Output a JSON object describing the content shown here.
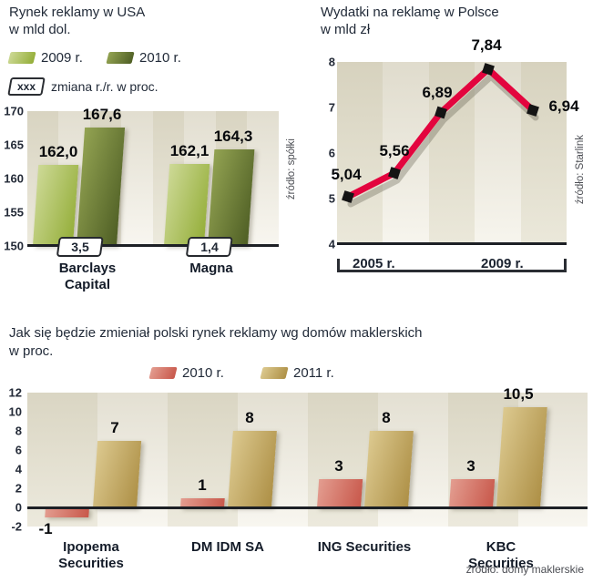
{
  "chart_data": [
    {
      "id": "usa-ad-market",
      "type": "bar",
      "title": "Rynek reklamy w USA",
      "subtitle": "w mld dol.",
      "note_tag": "xxx",
      "note_text": "zmiana r./r. w proc.",
      "source": "źródło: spółki",
      "categories": [
        "Barclays\nCapital",
        "Magna"
      ],
      "series": [
        {
          "name": "2009 r.",
          "values": [
            162.0,
            162.1
          ],
          "labels": [
            "162,0",
            "162,1"
          ],
          "color_light": "#cdd996",
          "color_dark": "#93ad37"
        },
        {
          "name": "2010 r.",
          "values": [
            167.6,
            164.3
          ],
          "labels": [
            "167,6",
            "164,3"
          ],
          "color_light": "#93a352",
          "color_dark": "#4e5e24"
        }
      ],
      "change_row": [
        "3,5",
        "1,4"
      ],
      "ylim": [
        150,
        170
      ],
      "yticks": [
        "170",
        "165",
        "160",
        "155",
        "150"
      ],
      "legend_position": "top-left",
      "grid": false
    },
    {
      "id": "poland-ad-spend",
      "type": "line",
      "title": "Wydatki na reklamę w Polsce",
      "subtitle": "w mld zł",
      "source": "źródło: Starlink",
      "x": [
        "2005",
        "2006",
        "2007",
        "2008",
        "2009"
      ],
      "x_bracket_labels": [
        "2005 r.",
        "2009 r."
      ],
      "values": [
        5.04,
        5.56,
        6.89,
        7.84,
        6.94
      ],
      "labels": [
        "5,04",
        "5,56",
        "6,89",
        "7,84",
        "6,94"
      ],
      "ylim": [
        4,
        8
      ],
      "yticks": [
        "8",
        "7",
        "6",
        "5",
        "4"
      ],
      "line_color": "#e3043e",
      "marker_color": "#141414",
      "grid": false
    },
    {
      "id": "broker-forecast",
      "type": "bar",
      "title": "Jak się będzie zmieniał polski rynek reklamy wg domów maklerskich",
      "subtitle": "w proc.",
      "source": "źródło: domy maklerskie",
      "categories": [
        "Ipopema\nSecurities",
        "DM IDM SA",
        "ING Securities",
        "KBC Securities"
      ],
      "series": [
        {
          "name": "2010 r.",
          "values": [
            -1,
            1,
            3,
            3
          ],
          "labels": [
            "-1",
            "1",
            "3",
            "3"
          ],
          "color_light": "#e39d90",
          "color_dark": "#c8574a"
        },
        {
          "name": "2011 r.",
          "values": [
            7,
            8,
            8,
            10.5
          ],
          "labels": [
            "7",
            "8",
            "8",
            "10,5"
          ],
          "color_light": "#dcc98f",
          "color_dark": "#ad8f45"
        }
      ],
      "ylim": [
        -2,
        12
      ],
      "yticks": [
        "12",
        "10",
        "8",
        "6",
        "4",
        "2",
        "0",
        "-2"
      ],
      "legend_position": "top",
      "grid": false
    }
  ]
}
